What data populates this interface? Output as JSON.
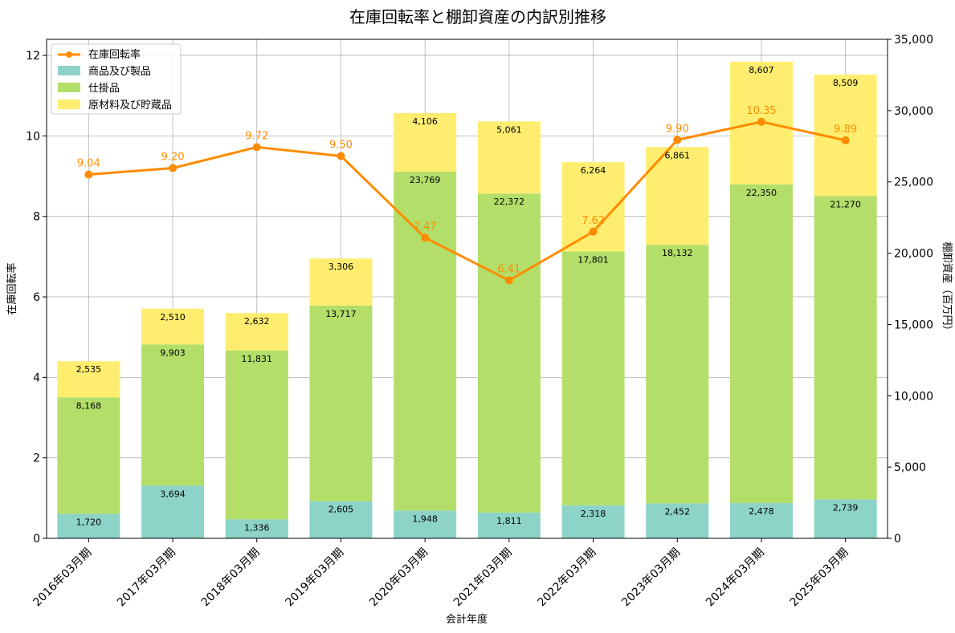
{
  "chart_data": {
    "type": "bar",
    "title": "在庫回転率と棚卸資産の内訳別推移",
    "xlabel": "会計年度",
    "ylabel_left": "在庫回転率",
    "ylabel_right": "棚卸資産（百万円）",
    "ylim_left": [
      0,
      12.4
    ],
    "ylim_right": [
      0,
      35000
    ],
    "yticks_left": [
      "0",
      "2",
      "4",
      "6",
      "8",
      "10",
      "12"
    ],
    "yticks_right": [
      "0",
      "5,000",
      "10,000",
      "15,000",
      "20,000",
      "25,000",
      "30,000",
      "35,000"
    ],
    "grid": true,
    "legend_position": "top-left",
    "categories": [
      "2016年03月期",
      "2017年03月期",
      "2018年03月期",
      "2019年03月期",
      "2020年03月期",
      "2021年03月期",
      "2022年03月期",
      "2023年03月期",
      "2024年03月期",
      "2025年03月期"
    ],
    "stacked_series": [
      {
        "name": "商品及び製品",
        "color": "#8dd3c7",
        "values": [
          1720,
          3694,
          1336,
          2605,
          1948,
          1811,
          2318,
          2452,
          2478,
          2739
        ],
        "labels": [
          "1,720",
          "3,694",
          "1,336",
          "2,605",
          "1,948",
          "1,811",
          "2,318",
          "2,452",
          "2,478",
          "2,739"
        ]
      },
      {
        "name": "仕掛品",
        "color": "#b3de69",
        "values": [
          8168,
          9903,
          11831,
          13717,
          23769,
          22372,
          17801,
          18132,
          22350,
          21270
        ],
        "labels": [
          "8,168",
          "9,903",
          "11,831",
          "13,717",
          "23,769",
          "22,372",
          "17,801",
          "18,132",
          "22,350",
          "21,270"
        ]
      },
      {
        "name": "原材料及び貯蔵品",
        "color": "#ffed6f",
        "values": [
          2535,
          2510,
          2632,
          3306,
          4106,
          5061,
          6264,
          6861,
          8607,
          8509
        ],
        "labels": [
          "2,535",
          "2,510",
          "2,632",
          "3,306",
          "4,106",
          "5,061",
          "6,264",
          "6,861",
          "8,607",
          "8,509"
        ]
      }
    ],
    "line_series": {
      "name": "在庫回転率",
      "color": "#ff8c00",
      "values": [
        9.04,
        9.2,
        9.72,
        9.5,
        7.47,
        6.41,
        7.62,
        9.9,
        10.35,
        9.89
      ],
      "labels": [
        "9.04",
        "9.20",
        "9.72",
        "9.50",
        "7.47",
        "6.41",
        "7.62",
        "9.90",
        "10.35",
        "9.89"
      ]
    }
  }
}
